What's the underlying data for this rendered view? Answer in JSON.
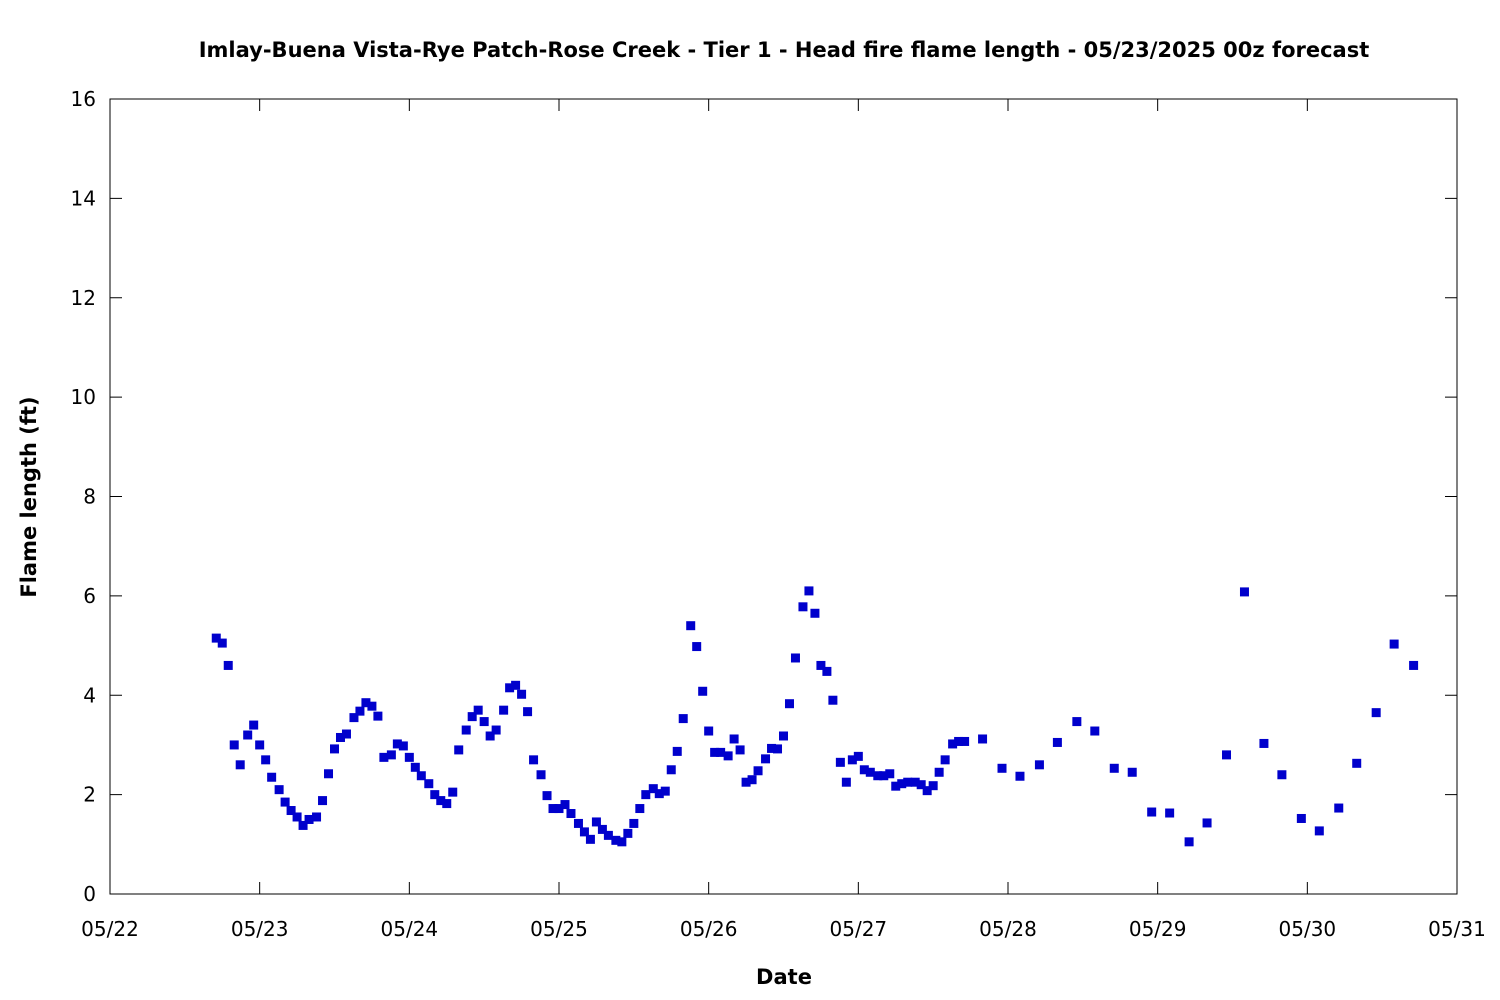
{
  "chart_data": {
    "type": "scatter",
    "title": "Imlay-Buena Vista-Rye Patch-Rose Creek - Tier 1 - Head fire flame length - 05/23/2025 00z forecast",
    "xlabel": "Date",
    "ylabel": "Flame length (ft)",
    "x_unit": "days",
    "xlim": [
      "05/22",
      "05/31"
    ],
    "ylim": [
      0,
      16
    ],
    "x_tick_labels": [
      "05/22",
      "05/23",
      "05/24",
      "05/25",
      "05/26",
      "05/27",
      "05/28",
      "05/29",
      "05/30",
      "05/31"
    ],
    "y_ticks": [
      0,
      2,
      4,
      6,
      8,
      10,
      12,
      14,
      16
    ],
    "grid": false,
    "marker": "square",
    "marker_color": "#0000cc",
    "series": [
      {
        "x": [
          22.71,
          22.75,
          22.79,
          22.83,
          22.87,
          22.92,
          22.96,
          23.0,
          23.04,
          23.08,
          23.13,
          23.17,
          23.21,
          23.25,
          23.29,
          23.33,
          23.38,
          23.42,
          23.46,
          23.5,
          23.54,
          23.58,
          23.63,
          23.67,
          23.71,
          23.75,
          23.79,
          23.83,
          23.88,
          23.92,
          23.96,
          24.0,
          24.04,
          24.08,
          24.13,
          24.17,
          24.21,
          24.25,
          24.29,
          24.33,
          24.38,
          24.42,
          24.46,
          24.5,
          24.54,
          24.58,
          24.63,
          24.67,
          24.71,
          24.75,
          24.79,
          24.83,
          24.88,
          24.92,
          24.96,
          25.0,
          25.04,
          25.08,
          25.13,
          25.17,
          25.21,
          25.25,
          25.29,
          25.33,
          25.38,
          25.42,
          25.46,
          25.5,
          25.54,
          25.58,
          25.63,
          25.67,
          25.71,
          25.75,
          25.79,
          25.83,
          25.88,
          25.92,
          25.96,
          26.0,
          26.04,
          26.08,
          26.13,
          26.17,
          26.21,
          26.25,
          26.29,
          26.33,
          26.38,
          26.42,
          26.46,
          26.5,
          26.54,
          26.58,
          26.63,
          26.67,
          26.71,
          26.75,
          26.79,
          26.83,
          26.88,
          26.92,
          26.96,
          27.0,
          27.04,
          27.08,
          27.13,
          27.17,
          27.21,
          27.25,
          27.29,
          27.33,
          27.38,
          27.42,
          27.46,
          27.5,
          27.54,
          27.58,
          27.63,
          27.67,
          27.71,
          27.83,
          27.96,
          28.08,
          28.21,
          28.33,
          28.46,
          28.58,
          28.71,
          28.83,
          28.96,
          29.08,
          29.21,
          29.33,
          29.46,
          29.58,
          29.71,
          29.83,
          29.96,
          30.08,
          30.21,
          30.33,
          30.46,
          30.58,
          30.71
        ],
        "y": [
          5.15,
          5.05,
          4.6,
          3.0,
          2.6,
          3.2,
          3.4,
          3.0,
          2.7,
          2.35,
          2.1,
          1.85,
          1.68,
          1.55,
          1.38,
          1.5,
          1.55,
          1.88,
          2.42,
          2.92,
          3.15,
          3.22,
          3.55,
          3.68,
          3.85,
          3.78,
          3.58,
          2.75,
          2.8,
          3.02,
          2.98,
          2.75,
          2.55,
          2.38,
          2.22,
          2.0,
          1.88,
          1.82,
          2.05,
          2.9,
          3.3,
          3.57,
          3.7,
          3.47,
          3.18,
          3.3,
          3.7,
          4.15,
          4.2,
          4.02,
          3.67,
          2.7,
          2.4,
          1.98,
          1.72,
          1.72,
          1.8,
          1.62,
          1.42,
          1.25,
          1.1,
          1.45,
          1.3,
          1.18,
          1.08,
          1.05,
          1.22,
          1.42,
          1.72,
          2.0,
          2.12,
          2.02,
          2.07,
          2.5,
          2.87,
          3.53,
          5.4,
          4.98,
          4.08,
          3.28,
          2.85,
          2.85,
          2.78,
          3.12,
          2.9,
          2.25,
          2.3,
          2.48,
          2.72,
          2.93,
          2.92,
          3.18,
          3.83,
          4.75,
          5.78,
          6.1,
          5.65,
          4.6,
          4.48,
          3.9,
          2.65,
          2.25,
          2.7,
          2.77,
          2.5,
          2.45,
          2.38,
          2.38,
          2.42,
          2.17,
          2.22,
          2.25,
          2.25,
          2.2,
          2.08,
          2.18,
          2.45,
          2.7,
          3.02,
          3.07,
          3.07,
          3.12,
          2.53,
          2.37,
          2.6,
          3.05,
          3.47,
          3.28,
          2.53,
          2.45,
          1.65,
          1.63,
          1.05,
          1.43,
          2.8,
          6.08,
          3.03,
          2.4,
          1.52,
          1.27,
          1.73,
          2.63,
          3.65,
          5.03,
          4.6
        ]
      }
    ]
  }
}
